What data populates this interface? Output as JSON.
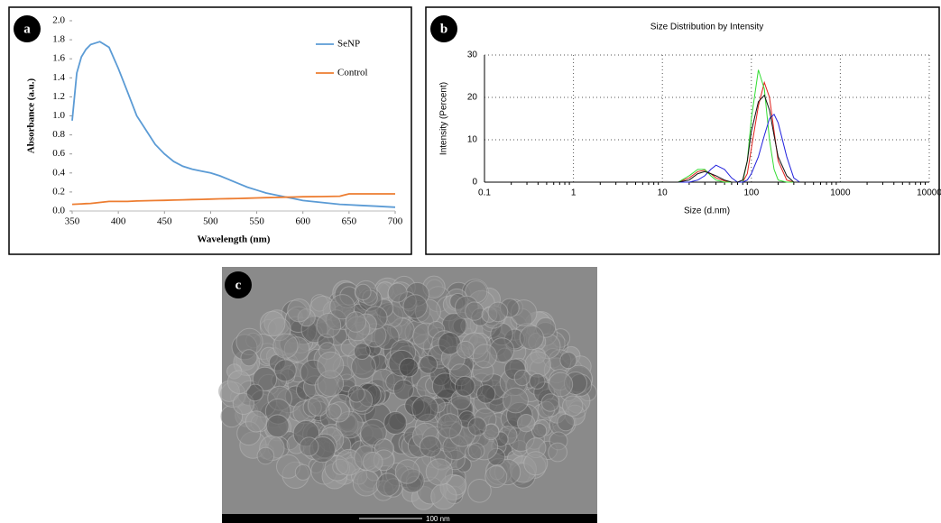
{
  "chart_data": [
    {
      "type": "line",
      "panel_label": "a",
      "xlabel": "Wavelength (nm)",
      "ylabel": "Absorbance (a.u.)",
      "x": [
        350,
        355,
        360,
        365,
        370,
        380,
        390,
        400,
        410,
        420,
        430,
        440,
        450,
        460,
        470,
        480,
        490,
        500,
        510,
        520,
        530,
        540,
        550,
        560,
        570,
        580,
        590,
        600,
        620,
        640,
        650,
        660,
        680,
        700
      ],
      "xlim": [
        350,
        700
      ],
      "xticks": [
        350,
        400,
        450,
        500,
        550,
        600,
        650,
        700
      ],
      "ylim": [
        0,
        2
      ],
      "yticks": [
        {
          "value": 0,
          "label": "0.0"
        },
        0.2,
        0.4,
        0.6,
        0.8,
        {
          "value": 1,
          "label": "1.0"
        },
        1.2,
        1.4,
        1.6,
        1.8,
        {
          "value": 2,
          "label": "2.0"
        }
      ],
      "grid": false,
      "legend": "upper right",
      "series": [
        {
          "name": "SeNP",
          "color": "#5b9bd5",
          "values": [
            0.95,
            1.45,
            1.62,
            1.7,
            1.75,
            1.78,
            1.72,
            1.5,
            1.25,
            1.0,
            0.85,
            0.7,
            0.6,
            0.52,
            0.47,
            0.44,
            0.42,
            0.4,
            0.37,
            0.33,
            0.29,
            0.25,
            0.22,
            0.19,
            0.17,
            0.15,
            0.13,
            0.11,
            0.09,
            0.07,
            0.065,
            0.06,
            0.05,
            0.04
          ]
        },
        {
          "name": "Control",
          "color": "#ed7d31",
          "values": [
            0.07,
            0.072,
            0.075,
            0.078,
            0.08,
            0.09,
            0.1,
            0.1,
            0.1,
            0.105,
            0.108,
            0.11,
            0.112,
            0.115,
            0.118,
            0.12,
            0.122,
            0.125,
            0.128,
            0.13,
            0.132,
            0.135,
            0.137,
            0.14,
            0.142,
            0.145,
            0.147,
            0.15,
            0.152,
            0.155,
            0.18,
            0.18,
            0.18,
            0.18
          ]
        }
      ]
    },
    {
      "type": "line",
      "panel_label": "b",
      "title": "Size Distribution by Intensity",
      "xlabel": "Size (d.nm)",
      "ylabel": "Intensity (Percent)",
      "xscale": "log",
      "x": [
        15,
        20,
        25,
        30,
        35,
        40,
        50,
        60,
        70,
        80,
        90,
        100,
        120,
        140,
        160,
        180,
        200,
        250,
        300,
        350
      ],
      "xlim": [
        0.1,
        10000
      ],
      "xticks": [
        0.1,
        1,
        10,
        100,
        1000,
        10000
      ],
      "ylim": [
        0,
        30
      ],
      "yticks": [
        0,
        10,
        20,
        30
      ],
      "grid": true,
      "series": [
        {
          "color": "#e0201c",
          "values": [
            0,
            1,
            2.5,
            2.8,
            2,
            1,
            0.3,
            0,
            0,
            0,
            2,
            8,
            18,
            23.5,
            20,
            12,
            5,
            0.5,
            0,
            0
          ]
        },
        {
          "color": "#33dd33",
          "values": [
            0,
            1.5,
            3,
            3,
            1.5,
            0.5,
            0,
            0,
            0,
            0,
            5,
            15,
            26.5,
            22,
            10,
            3,
            0.5,
            0,
            0,
            0
          ]
        },
        {
          "color": "#2222dd",
          "values": [
            0,
            0,
            0.5,
            1.5,
            3,
            4,
            3,
            1,
            0,
            0,
            0.5,
            2,
            6,
            11,
            15,
            16,
            14,
            6,
            1,
            0
          ]
        },
        {
          "color": "#111111",
          "values": [
            0,
            0.5,
            2,
            2.5,
            2,
            1.5,
            0.5,
            0,
            0,
            0.5,
            5,
            12,
            19,
            20.5,
            17,
            11,
            6,
            1.5,
            0,
            0
          ]
        }
      ]
    }
  ],
  "image": {
    "panel_label": "c",
    "scale_bar": "100 nm"
  }
}
